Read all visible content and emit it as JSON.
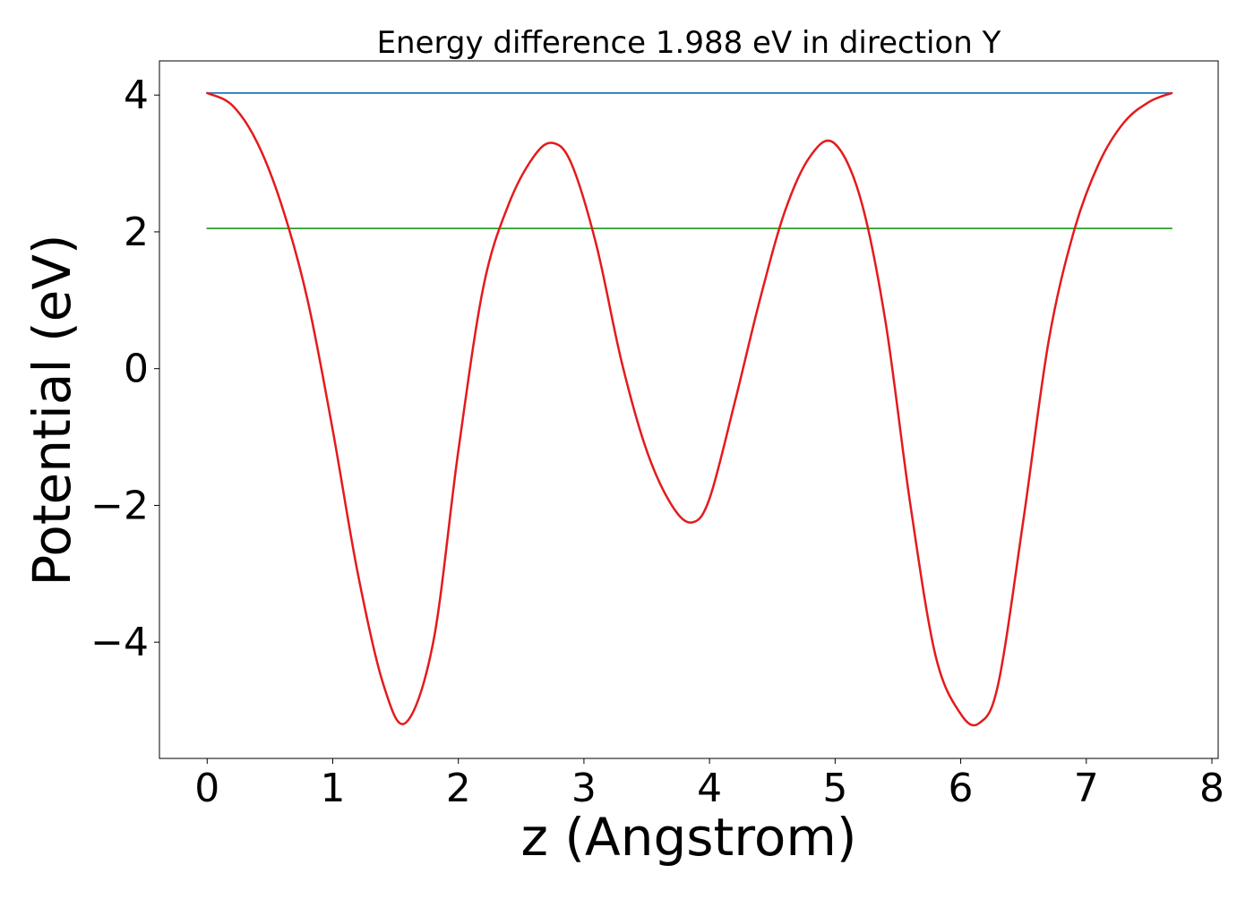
{
  "chart_data": {
    "type": "line",
    "title": "Energy difference 1.988 eV in direction Y",
    "xlabel": "z (Angstrom)",
    "ylabel": "Potential (eV)",
    "xlim": [
      -0.38,
      8.05
    ],
    "ylim": [
      -5.7,
      4.5
    ],
    "xticks": [
      0,
      1,
      2,
      3,
      4,
      5,
      6,
      7,
      8
    ],
    "yticks": [
      -4,
      -2,
      0,
      2,
      4
    ],
    "xtick_labels": [
      "0",
      "1",
      "2",
      "3",
      "4",
      "5",
      "6",
      "7",
      "8"
    ],
    "ytick_labels": [
      "−4",
      "−2",
      "0",
      "2",
      "4"
    ],
    "grid": false,
    "series": [
      {
        "color": "#1f77b4",
        "x": [
          0,
          7.68
        ],
        "y": [
          4.03,
          4.03
        ]
      },
      {
        "color": "#2ca02c",
        "x": [
          0,
          7.68
        ],
        "y": [
          2.05,
          2.05
        ]
      },
      {
        "color": "#e41a1c",
        "x": [
          0,
          0.2,
          0.4,
          0.6,
          0.8,
          1.0,
          1.2,
          1.4,
          1.58,
          1.8,
          2.0,
          2.2,
          2.4,
          2.6,
          2.75,
          2.9,
          3.1,
          3.3,
          3.5,
          3.7,
          3.86,
          4.0,
          4.2,
          4.4,
          4.6,
          4.8,
          4.99,
          5.2,
          5.4,
          5.6,
          5.8,
          6.0,
          6.15,
          6.3,
          6.5,
          6.7,
          6.9,
          7.1,
          7.3,
          7.5,
          7.68
        ],
        "y": [
          4.03,
          3.85,
          3.3,
          2.35,
          1.0,
          -0.9,
          -3.0,
          -4.6,
          -5.18,
          -4.0,
          -1.2,
          1.2,
          2.4,
          3.1,
          3.3,
          3.0,
          1.8,
          0.1,
          -1.2,
          -2.0,
          -2.25,
          -1.9,
          -0.5,
          1.0,
          2.3,
          3.1,
          3.3,
          2.5,
          0.7,
          -2.0,
          -4.2,
          -5.05,
          -5.18,
          -4.6,
          -2.2,
          0.4,
          2.0,
          3.0,
          3.6,
          3.9,
          4.03
        ]
      }
    ]
  }
}
